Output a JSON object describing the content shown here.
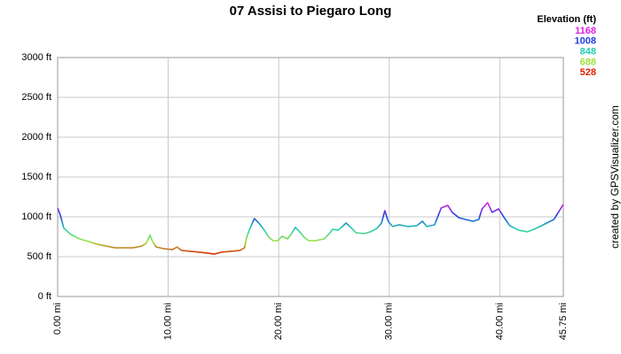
{
  "chart_data": {
    "type": "line",
    "title": "07 Assisi to Piegaro Long",
    "legend_title": "Elevation (ft)",
    "color_scale": [
      {
        "value": 1168,
        "color": "#e020e0"
      },
      {
        "value": 1008,
        "color": "#2040e0"
      },
      {
        "value": 848,
        "color": "#20d0b0"
      },
      {
        "value": 688,
        "color": "#a0e040"
      },
      {
        "value": 528,
        "color": "#e02000"
      }
    ],
    "credit": "created by GPSVisualizer.com",
    "x": [
      0,
      0.24,
      0.56,
      1.2,
      2.0,
      2.8,
      3.6,
      4.4,
      5.2,
      6.0,
      6.8,
      7.6,
      8.0,
      8.35,
      8.6,
      8.9,
      9.6,
      10.4,
      10.8,
      11.2,
      12.0,
      12.8,
      13.6,
      14.2,
      14.8,
      15.7,
      16.5,
      16.9,
      17.1,
      17.4,
      17.8,
      18.2,
      18.7,
      19.1,
      19.5,
      19.9,
      20.3,
      20.8,
      21.1,
      21.5,
      21.9,
      22.3,
      22.7,
      23.3,
      24.1,
      24.5,
      24.9,
      25.4,
      26.1,
      26.6,
      27.0,
      27.7,
      28.3,
      28.9,
      29.3,
      29.6,
      29.9,
      30.3,
      30.9,
      31.7,
      32.5,
      33.0,
      33.4,
      34.1,
      34.7,
      35.3,
      35.7,
      36.3,
      36.9,
      37.6,
      38.1,
      38.4,
      38.9,
      39.3,
      39.9,
      40.4,
      40.9,
      41.7,
      42.5,
      43.3,
      44.1,
      44.9,
      45.3,
      45.75
    ],
    "values": [
      1111,
      1022,
      856,
      778,
      722,
      689,
      656,
      633,
      611,
      611,
      611,
      633,
      667,
      767,
      689,
      622,
      600,
      589,
      622,
      578,
      567,
      556,
      544,
      533,
      556,
      567,
      578,
      611,
      744,
      856,
      978,
      922,
      833,
      744,
      700,
      700,
      756,
      722,
      778,
      867,
      811,
      744,
      700,
      700,
      722,
      778,
      844,
      833,
      922,
      856,
      800,
      789,
      811,
      856,
      922,
      1078,
      944,
      878,
      900,
      878,
      889,
      944,
      878,
      900,
      1111,
      1144,
      1056,
      989,
      967,
      944,
      967,
      1100,
      1178,
      1056,
      1100,
      989,
      889,
      833,
      811,
      856,
      911,
      967,
      1056,
      1156
    ],
    "xlim": [
      0,
      45.75
    ],
    "ylim": [
      0,
      3000
    ],
    "xticks": [
      {
        "value": 0,
        "label": "0.00 mi"
      },
      {
        "value": 10,
        "label": "10.00 mi"
      },
      {
        "value": 20,
        "label": "20.00 mi"
      },
      {
        "value": 30,
        "label": "30.00 mi"
      },
      {
        "value": 40,
        "label": "40.00 mi"
      },
      {
        "value": 45.75,
        "label": "45.75 mi"
      }
    ],
    "yticks": [
      {
        "value": 0,
        "label": "0 ft"
      },
      {
        "value": 500,
        "label": "500 ft"
      },
      {
        "value": 1000,
        "label": "1000 ft"
      },
      {
        "value": 1500,
        "label": "1500 ft"
      },
      {
        "value": 2000,
        "label": "2000 ft"
      },
      {
        "value": 2500,
        "label": "2500 ft"
      },
      {
        "value": 3000,
        "label": "3000 ft"
      }
    ],
    "grid": true
  }
}
